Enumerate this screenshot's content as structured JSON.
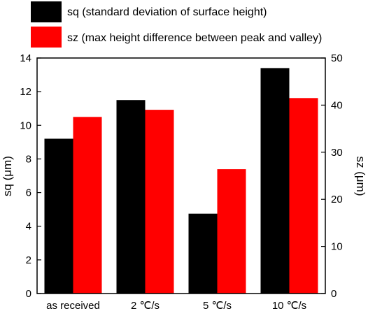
{
  "chart_data": {
    "type": "bar",
    "categories": [
      "as received",
      "2 ℃/s",
      "5 ℃/s",
      "10 ℃/s"
    ],
    "series": [
      {
        "name": "sq (standard deviation of surface height)",
        "values": [
          9.2,
          11.5,
          4.75,
          13.4
        ],
        "axis": "left",
        "color": "#000000"
      },
      {
        "name": "sz (max height difference between peak and valley)",
        "values": [
          37.5,
          39.0,
          26.4,
          41.5
        ],
        "axis": "right",
        "color": "#ff0000"
      }
    ],
    "ylabel": "sq (μm)",
    "y2label": "sz (μm)",
    "ylim": [
      0,
      14
    ],
    "y2lim": [
      0,
      50
    ],
    "yticks": [
      "0",
      "2",
      "4",
      "6",
      "8",
      "10",
      "12",
      "14"
    ],
    "y2ticks": [
      "0",
      "10",
      "20",
      "30",
      "40",
      "50"
    ],
    "legend_position": "top",
    "grid": false
  }
}
